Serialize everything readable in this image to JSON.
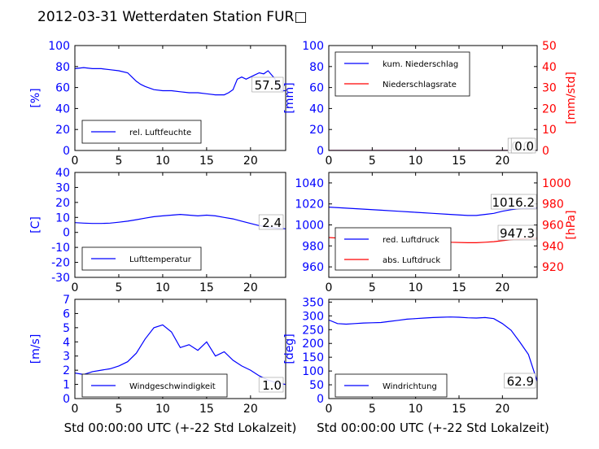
{
  "figure_title": "2012-03-31 Wetterdaten Station FUR□",
  "colors": {
    "blue": "#0000ff",
    "red": "#ff0000",
    "black": "#000000"
  },
  "chart_data": [
    {
      "type": "line",
      "ylabel": "[%]",
      "ylim": [
        0,
        100
      ],
      "yticks": [
        0,
        20,
        40,
        60,
        80,
        100
      ],
      "xlim": [
        0,
        24
      ],
      "xticks": [
        0,
        5,
        10,
        15,
        20
      ],
      "xlabel": "",
      "legend": "lower-left",
      "series": [
        {
          "name": "rel. Luftfeuchte",
          "color": "#0000ff",
          "x": [
            0,
            1,
            2,
            3,
            4,
            5,
            6,
            6.5,
            7,
            7.5,
            8,
            9,
            10,
            11,
            12,
            13,
            14,
            15,
            16,
            17,
            17.5,
            18,
            18.5,
            19,
            19.5,
            20,
            20.5,
            21,
            21.5,
            22,
            22.5,
            23,
            23.5,
            24
          ],
          "y": [
            78,
            79,
            78,
            78,
            77,
            76,
            74,
            70,
            66,
            63,
            61,
            58,
            57,
            57,
            56,
            55,
            55,
            54,
            53,
            53,
            55,
            58,
            68,
            70,
            68,
            70,
            72,
            74,
            73,
            76,
            71,
            66,
            57,
            57
          ]
        }
      ],
      "value_label": "57.5"
    },
    {
      "type": "line",
      "ylabel": "[mm]",
      "ylim": [
        0,
        100
      ],
      "yticks": [
        0,
        20,
        40,
        60,
        80,
        100
      ],
      "y2label": "[mm/std]",
      "y2lim": [
        0,
        50
      ],
      "y2ticks": [
        0,
        10,
        20,
        30,
        40,
        50
      ],
      "xlim": [
        0,
        24
      ],
      "xticks": [
        0,
        5,
        10,
        15,
        20
      ],
      "xlabel": "",
      "legend": "upper-left",
      "series": [
        {
          "name": "kum. Niederschlag",
          "color": "#0000ff",
          "axis": "left",
          "x": [
            0,
            24
          ],
          "y": [
            0,
            0
          ]
        },
        {
          "name": "Niederschlagsrate",
          "color": "#ff0000",
          "axis": "right",
          "x": [
            0,
            24
          ],
          "y": [
            0,
            0
          ]
        }
      ],
      "value_labels": [
        "0.0",
        "0.0"
      ]
    },
    {
      "type": "line",
      "ylabel": "[C]",
      "ylim": [
        -30,
        40
      ],
      "yticks": [
        -30,
        -20,
        -10,
        0,
        10,
        20,
        30,
        40
      ],
      "xlim": [
        0,
        24
      ],
      "xticks": [
        0,
        5,
        10,
        15,
        20
      ],
      "xlabel": "",
      "legend": "lower-left",
      "series": [
        {
          "name": "Lufttemperatur",
          "color": "#0000ff",
          "x": [
            0,
            1,
            2,
            3,
            4,
            5,
            6,
            7,
            8,
            9,
            10,
            11,
            12,
            13,
            14,
            15,
            16,
            17,
            18,
            19,
            20,
            21,
            22,
            23,
            24
          ],
          "y": [
            6.5,
            6.2,
            6,
            6,
            6.2,
            6.8,
            7.5,
            8.5,
            9.5,
            10.5,
            11,
            11.5,
            12,
            11.5,
            11,
            11.5,
            11,
            10,
            9,
            7.5,
            6,
            4.5,
            3.5,
            2.8,
            2.4
          ]
        }
      ],
      "value_label": "2.4"
    },
    {
      "type": "line",
      "ylabel": "",
      "ylim": [
        950,
        1050
      ],
      "yticks": [
        960,
        980,
        1000,
        1020,
        1040
      ],
      "y2label": "[hPa]",
      "y2lim": [
        910,
        1010
      ],
      "y2ticks": [
        920,
        940,
        960,
        980,
        1000
      ],
      "xlim": [
        0,
        24
      ],
      "xticks": [
        0,
        5,
        10,
        15,
        20
      ],
      "xlabel": "",
      "legend": "lower-left",
      "series": [
        {
          "name": "red. Luftdruck",
          "color": "#0000ff",
          "axis": "left",
          "x": [
            0,
            2,
            4,
            6,
            8,
            10,
            12,
            14,
            16,
            17,
            18,
            19,
            20,
            21,
            22,
            23,
            24
          ],
          "y": [
            1017,
            1016,
            1015,
            1014,
            1013,
            1012,
            1011,
            1010,
            1009,
            1009,
            1010,
            1011,
            1013,
            1014.5,
            1015.5,
            1016,
            1016.2
          ]
        },
        {
          "name": "abs. Luftdruck",
          "color": "#ff0000",
          "axis": "right",
          "x": [
            0,
            2,
            4,
            6,
            8,
            10,
            12,
            14,
            16,
            17,
            18,
            19,
            20,
            21,
            22,
            23,
            24
          ],
          "y": [
            948,
            947,
            946.5,
            946,
            945.5,
            945,
            944.5,
            943.5,
            943,
            943,
            943.5,
            944,
            945,
            946,
            946.5,
            947,
            947.3
          ]
        }
      ],
      "value_labels": [
        "1016.2",
        "947.3"
      ]
    },
    {
      "type": "line",
      "ylabel": "[m/s]",
      "ylim": [
        0,
        7
      ],
      "yticks": [
        0,
        1,
        2,
        3,
        4,
        5,
        6,
        7
      ],
      "xlim": [
        0,
        24
      ],
      "xticks": [
        0,
        5,
        10,
        15,
        20
      ],
      "xlabel": "Std 00:00:00 UTC (+-22 Std Lokalzeit)",
      "legend": "lower-left",
      "series": [
        {
          "name": "Windgeschwindigkeit",
          "color": "#0000ff",
          "x": [
            0,
            1,
            2,
            3,
            4,
            5,
            6,
            7,
            8,
            9,
            10,
            11,
            12,
            13,
            14,
            15,
            16,
            17,
            18,
            19,
            20,
            21,
            22,
            23,
            24
          ],
          "y": [
            1.8,
            1.7,
            1.9,
            2.0,
            2.1,
            2.3,
            2.6,
            3.2,
            4.2,
            5.0,
            5.2,
            4.7,
            3.6,
            3.8,
            3.4,
            4.0,
            3.0,
            3.3,
            2.7,
            2.3,
            2.0,
            1.6,
            1.3,
            1.1,
            1.0
          ]
        }
      ],
      "value_label": "1.0"
    },
    {
      "type": "line",
      "ylabel": "[deg]",
      "ylim": [
        0,
        360
      ],
      "yticks": [
        0,
        50,
        100,
        150,
        200,
        250,
        300,
        350
      ],
      "xlim": [
        0,
        24
      ],
      "xticks": [
        0,
        5,
        10,
        15,
        20
      ],
      "xlabel": "Std 00:00:00 UTC (+-22 Std Lokalzeit)",
      "legend": "lower-left",
      "series": [
        {
          "name": "Windrichtung",
          "color": "#0000ff",
          "x": [
            0,
            1,
            2,
            3,
            4,
            5,
            6,
            7,
            8,
            9,
            10,
            11,
            12,
            13,
            14,
            15,
            16,
            17,
            18,
            19,
            20,
            21,
            22,
            23,
            24
          ],
          "y": [
            285,
            272,
            270,
            272,
            274,
            275,
            276,
            280,
            284,
            288,
            290,
            292,
            294,
            295,
            296,
            295,
            293,
            292,
            294,
            290,
            272,
            248,
            205,
            160,
            63
          ]
        }
      ],
      "value_label": "62.9"
    }
  ]
}
